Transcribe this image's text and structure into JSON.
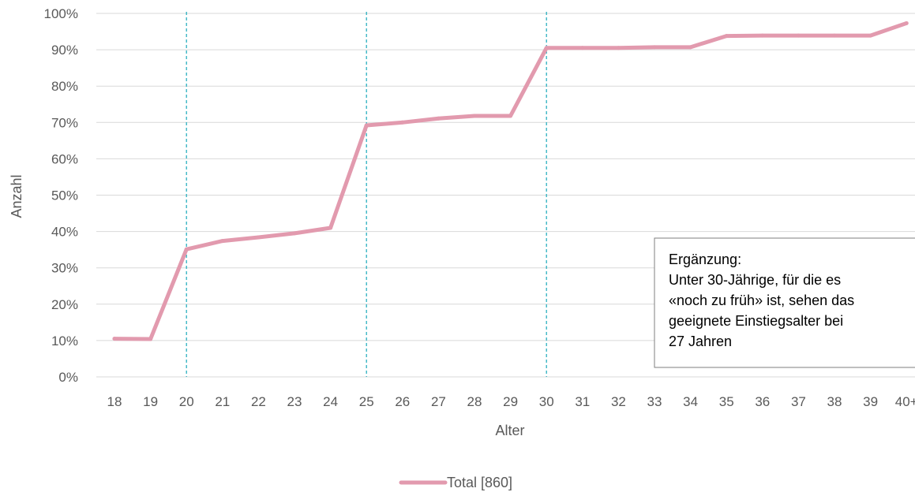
{
  "chart_data": {
    "type": "line",
    "categories": [
      "18",
      "19",
      "20",
      "21",
      "22",
      "23",
      "24",
      "25",
      "26",
      "27",
      "28",
      "29",
      "30",
      "31",
      "32",
      "33",
      "34",
      "35",
      "36",
      "37",
      "38",
      "39",
      "40+"
    ],
    "series": [
      {
        "name": "Total [860]",
        "color": "#e29aae",
        "values": [
          0.105,
          0.104,
          0.351,
          0.374,
          0.384,
          0.395,
          0.41,
          0.692,
          0.7,
          0.711,
          0.718,
          0.718,
          0.905,
          0.905,
          0.905,
          0.907,
          0.907,
          0.938,
          0.939,
          0.939,
          0.939,
          0.939,
          0.973
        ]
      }
    ],
    "xlabel": "Alter",
    "ylabel": "Anzahl",
    "ylim": [
      0,
      1
    ],
    "y_ticks": [
      "0%",
      "10%",
      "20%",
      "30%",
      "40%",
      "50%",
      "60%",
      "70%",
      "80%",
      "90%",
      "100%"
    ],
    "y_tick_values": [
      0,
      0.1,
      0.2,
      0.3,
      0.4,
      0.5,
      0.6,
      0.7,
      0.8,
      0.9,
      1.0
    ],
    "grid": "horizontal",
    "reference_lines": {
      "categories": [
        "20",
        "25",
        "30"
      ],
      "color": "#1aaabb",
      "style": "dashed"
    },
    "legend_position": "bottom-center",
    "annotation": {
      "lines": [
        "Ergänzung:",
        "Unter 30-Jährige, für die es",
        "«noch zu früh» ist, sehen das",
        "geeignete Einstiegsalter bei",
        "27 Jahren"
      ]
    }
  }
}
